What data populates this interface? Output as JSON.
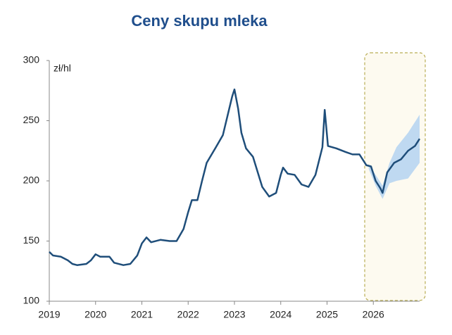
{
  "chart_data": {
    "type": "line",
    "title": "Ceny skupu mleka",
    "unit_label": "zł/hl",
    "x": [
      2019.0,
      2019.08,
      2019.25,
      2019.4,
      2019.5,
      2019.6,
      2019.8,
      2019.9,
      2020.0,
      2020.1,
      2020.3,
      2020.4,
      2020.6,
      2020.75,
      2020.9,
      2021.0,
      2021.1,
      2021.2,
      2021.4,
      2021.6,
      2021.75,
      2021.9,
      2022.0,
      2022.08,
      2022.2,
      2022.3,
      2022.4,
      2022.6,
      2022.75,
      2022.95,
      2023.0,
      2023.08,
      2023.15,
      2023.25,
      2023.4,
      2023.6,
      2023.75,
      2023.9,
      2024.0,
      2024.05,
      2024.15,
      2024.3,
      2024.45,
      2024.6,
      2024.75,
      2024.9,
      2024.95,
      2025.02,
      2025.2,
      2025.4,
      2025.55,
      2025.7,
      2025.85,
      2025.95,
      2026.05,
      2026.15,
      2026.2,
      2026.3,
      2026.45,
      2026.6,
      2026.75,
      2026.9,
      2027.0
    ],
    "series": [
      {
        "color": "#1f4e7a",
        "values": [
          141,
          138,
          137,
          134,
          131,
          130,
          131,
          134,
          139,
          137,
          137,
          132,
          130,
          131,
          138,
          148,
          153,
          149,
          151,
          150,
          150,
          160,
          174,
          184,
          184,
          200,
          215,
          228,
          238,
          270,
          276,
          260,
          240,
          227,
          220,
          195,
          187,
          190,
          205,
          211,
          206,
          205,
          197,
          195,
          205,
          228,
          259,
          229,
          227,
          224,
          222,
          222,
          213,
          212,
          200,
          194,
          190,
          207,
          215,
          218,
          225,
          229,
          235
        ]
      }
    ],
    "band": {
      "color": "#a9cdf2",
      "x": [
        2025.9,
        2026.05,
        2026.2,
        2026.35,
        2026.5,
        2026.75,
        2027.0
      ],
      "lower": [
        210,
        196,
        185,
        198,
        200,
        202,
        215
      ],
      "upper": [
        214,
        205,
        196,
        215,
        228,
        240,
        255
      ]
    },
    "xlim": [
      2019,
      2027
    ],
    "xticks": [
      2019,
      2020,
      2021,
      2022,
      2023,
      2024,
      2025,
      2026
    ],
    "ylim": [
      100,
      300
    ],
    "yticks": [
      100,
      150,
      200,
      250,
      300
    ]
  }
}
